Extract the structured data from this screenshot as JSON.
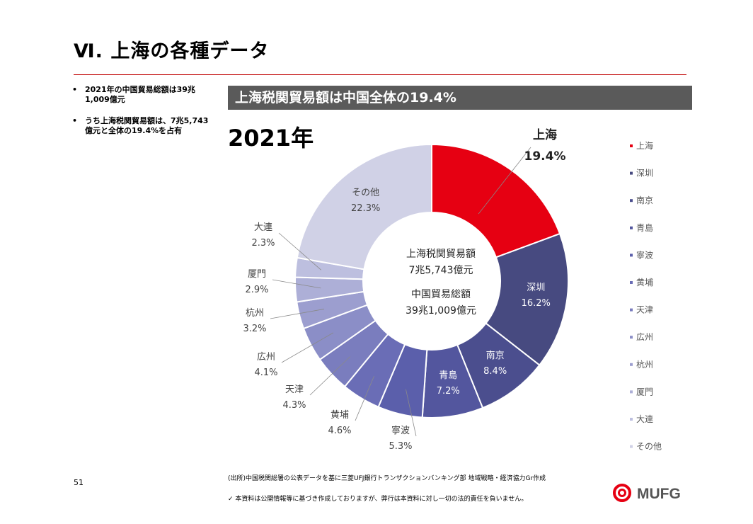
{
  "page": {
    "title": "Ⅵ. 上海の各種データ",
    "number": "51"
  },
  "bullets": [
    "2021年の中国貿易総額は39兆1,009億元",
    "うち上海税関貿易額は、7兆5,743億元と全体の19.4%を占有"
  ],
  "banner": "上海税関貿易額は中国全体の19.4%",
  "chart_data": {
    "type": "pie",
    "title": "2021年",
    "categories": [
      "上海",
      "深圳",
      "南京",
      "青島",
      "寧波",
      "黄埔",
      "天津",
      "広州",
      "杭州",
      "厦門",
      "大連",
      "その他"
    ],
    "values": [
      19.4,
      16.2,
      8.4,
      7.2,
      5.3,
      4.6,
      4.3,
      4.1,
      3.2,
      2.9,
      2.3,
      22.3
    ],
    "value_labels": [
      "19.4%",
      "16.2%",
      "8.4%",
      "7.2%",
      "5.3%",
      "4.6%",
      "4.3%",
      "4.1%",
      "3.2%",
      "2.9%",
      "2.3%",
      "22.3%"
    ],
    "colors": [
      "#e60012",
      "#474a80",
      "#4b4e8e",
      "#53569e",
      "#5b5fab",
      "#6a6db6",
      "#7a7dbe",
      "#8b8ec7",
      "#9c9ecf",
      "#adafd7",
      "#bdbfdf",
      "#d0d1e6"
    ],
    "legend_position": "right",
    "center_text": [
      "上海税関貿易額",
      "7兆5,743億元",
      "中国貿易総額",
      "39兆1,009億元"
    ]
  },
  "footer": {
    "source": "(出所)中国税関総署の公表データを基に三菱UFJ銀行トランザクションバンキング部 地域戦略・経済協力Gr作成",
    "disclaimer": "✓ 本資料は公開情報等に基づき作成しておりますが、弊行は本資料に対し一切の法的責任を負いません。",
    "logo_text": "MUFG",
    "logo_color": "#e60012"
  }
}
